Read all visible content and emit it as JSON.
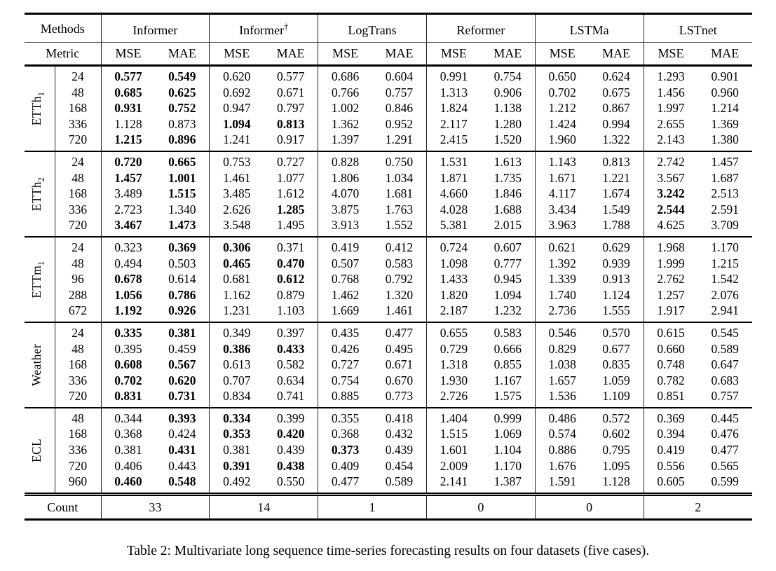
{
  "table": {
    "methods_label": "Methods",
    "metric_label": "Metric",
    "count_label": "Count",
    "mse_label": "MSE",
    "mae_label": "MAE",
    "methods": [
      {
        "name": "Informer",
        "sup": ""
      },
      {
        "name": "Informer",
        "sup": "†"
      },
      {
        "name": "LogTrans",
        "sup": ""
      },
      {
        "name": "Reformer",
        "sup": ""
      },
      {
        "name": "LSTMa",
        "sup": ""
      },
      {
        "name": "LSTnet",
        "sup": ""
      }
    ],
    "counts": [
      "33",
      "14",
      "1",
      "0",
      "0",
      "2"
    ],
    "groups": [
      {
        "dataset": "ETTh",
        "sub": "1",
        "rows": [
          {
            "horizon": "24",
            "values": [
              "0.577",
              "0.549",
              "0.620",
              "0.577",
              "0.686",
              "0.604",
              "0.991",
              "0.754",
              "0.650",
              "0.624",
              "1.293",
              "0.901"
            ],
            "bold": [
              0,
              1
            ]
          },
          {
            "horizon": "48",
            "values": [
              "0.685",
              "0.625",
              "0.692",
              "0.671",
              "0.766",
              "0.757",
              "1.313",
              "0.906",
              "0.702",
              "0.675",
              "1.456",
              "0.960"
            ],
            "bold": [
              0,
              1
            ]
          },
          {
            "horizon": "168",
            "values": [
              "0.931",
              "0.752",
              "0.947",
              "0.797",
              "1.002",
              "0.846",
              "1.824",
              "1.138",
              "1.212",
              "0.867",
              "1.997",
              "1.214"
            ],
            "bold": [
              0,
              1
            ]
          },
          {
            "horizon": "336",
            "values": [
              "1.128",
              "0.873",
              "1.094",
              "0.813",
              "1.362",
              "0.952",
              "2.117",
              "1.280",
              "1.424",
              "0.994",
              "2.655",
              "1.369"
            ],
            "bold": [
              2,
              3
            ]
          },
          {
            "horizon": "720",
            "values": [
              "1.215",
              "0.896",
              "1.241",
              "0.917",
              "1.397",
              "1.291",
              "2.415",
              "1.520",
              "1.960",
              "1.322",
              "2.143",
              "1.380"
            ],
            "bold": [
              0,
              1
            ]
          }
        ]
      },
      {
        "dataset": "ETTh",
        "sub": "2",
        "rows": [
          {
            "horizon": "24",
            "values": [
              "0.720",
              "0.665",
              "0.753",
              "0.727",
              "0.828",
              "0.750",
              "1.531",
              "1.613",
              "1.143",
              "0.813",
              "2.742",
              "1.457"
            ],
            "bold": [
              0,
              1
            ]
          },
          {
            "horizon": "48",
            "values": [
              "1.457",
              "1.001",
              "1.461",
              "1.077",
              "1.806",
              "1.034",
              "1.871",
              "1.735",
              "1.671",
              "1.221",
              "3.567",
              "1.687"
            ],
            "bold": [
              0,
              1
            ]
          },
          {
            "horizon": "168",
            "values": [
              "3.489",
              "1.515",
              "3.485",
              "1.612",
              "4.070",
              "1.681",
              "4.660",
              "1.846",
              "4.117",
              "1.674",
              "3.242",
              "2.513"
            ],
            "bold": [
              1,
              10
            ]
          },
          {
            "horizon": "336",
            "values": [
              "2.723",
              "1.340",
              "2.626",
              "1.285",
              "3.875",
              "1.763",
              "4.028",
              "1.688",
              "3.434",
              "1.549",
              "2.544",
              "2.591"
            ],
            "bold": [
              3,
              10
            ]
          },
          {
            "horizon": "720",
            "values": [
              "3.467",
              "1.473",
              "3.548",
              "1.495",
              "3.913",
              "1.552",
              "5.381",
              "2.015",
              "3.963",
              "1.788",
              "4.625",
              "3.709"
            ],
            "bold": [
              0,
              1
            ]
          }
        ]
      },
      {
        "dataset": "ETTm",
        "sub": "1",
        "rows": [
          {
            "horizon": "24",
            "values": [
              "0.323",
              "0.369",
              "0.306",
              "0.371",
              "0.419",
              "0.412",
              "0.724",
              "0.607",
              "0.621",
              "0.629",
              "1.968",
              "1.170"
            ],
            "bold": [
              1,
              2
            ]
          },
          {
            "horizon": "48",
            "values": [
              "0.494",
              "0.503",
              "0.465",
              "0.470",
              "0.507",
              "0.583",
              "1.098",
              "0.777",
              "1.392",
              "0.939",
              "1.999",
              "1.215"
            ],
            "bold": [
              2,
              3
            ]
          },
          {
            "horizon": "96",
            "values": [
              "0.678",
              "0.614",
              "0.681",
              "0.612",
              "0.768",
              "0.792",
              "1.433",
              "0.945",
              "1.339",
              "0.913",
              "2.762",
              "1.542"
            ],
            "bold": [
              0,
              3
            ]
          },
          {
            "horizon": "288",
            "values": [
              "1.056",
              "0.786",
              "1.162",
              "0.879",
              "1.462",
              "1.320",
              "1.820",
              "1.094",
              "1.740",
              "1.124",
              "1.257",
              "2.076"
            ],
            "bold": [
              0,
              1
            ]
          },
          {
            "horizon": "672",
            "values": [
              "1.192",
              "0.926",
              "1.231",
              "1.103",
              "1.669",
              "1.461",
              "2.187",
              "1.232",
              "2.736",
              "1.555",
              "1.917",
              "2.941"
            ],
            "bold": [
              0,
              1
            ]
          }
        ]
      },
      {
        "dataset": "Weather",
        "sub": "",
        "rows": [
          {
            "horizon": "24",
            "values": [
              "0.335",
              "0.381",
              "0.349",
              "0.397",
              "0.435",
              "0.477",
              "0.655",
              "0.583",
              "0.546",
              "0.570",
              "0.615",
              "0.545"
            ],
            "bold": [
              0,
              1
            ]
          },
          {
            "horizon": "48",
            "values": [
              "0.395",
              "0.459",
              "0.386",
              "0.433",
              "0.426",
              "0.495",
              "0.729",
              "0.666",
              "0.829",
              "0.677",
              "0.660",
              "0.589"
            ],
            "bold": [
              2,
              3
            ]
          },
          {
            "horizon": "168",
            "values": [
              "0.608",
              "0.567",
              "0.613",
              "0.582",
              "0.727",
              "0.671",
              "1.318",
              "0.855",
              "1.038",
              "0.835",
              "0.748",
              "0.647"
            ],
            "bold": [
              0,
              1
            ]
          },
          {
            "horizon": "336",
            "values": [
              "0.702",
              "0.620",
              "0.707",
              "0.634",
              "0.754",
              "0.670",
              "1.930",
              "1.167",
              "1.657",
              "1.059",
              "0.782",
              "0.683"
            ],
            "bold": [
              0,
              1
            ]
          },
          {
            "horizon": "720",
            "values": [
              "0.831",
              "0.731",
              "0.834",
              "0.741",
              "0.885",
              "0.773",
              "2.726",
              "1.575",
              "1.536",
              "1.109",
              "0.851",
              "0.757"
            ],
            "bold": [
              0,
              1
            ]
          }
        ]
      },
      {
        "dataset": "ECL",
        "sub": "",
        "rows": [
          {
            "horizon": "48",
            "values": [
              "0.344",
              "0.393",
              "0.334",
              "0.399",
              "0.355",
              "0.418",
              "1.404",
              "0.999",
              "0.486",
              "0.572",
              "0.369",
              "0.445"
            ],
            "bold": [
              1,
              2
            ]
          },
          {
            "horizon": "168",
            "values": [
              "0.368",
              "0.424",
              "0.353",
              "0.420",
              "0.368",
              "0.432",
              "1.515",
              "1.069",
              "0.574",
              "0.602",
              "0.394",
              "0.476"
            ],
            "bold": [
              2,
              3
            ]
          },
          {
            "horizon": "336",
            "values": [
              "0.381",
              "0.431",
              "0.381",
              "0.439",
              "0.373",
              "0.439",
              "1.601",
              "1.104",
              "0.886",
              "0.795",
              "0.419",
              "0.477"
            ],
            "bold": [
              1,
              4
            ]
          },
          {
            "horizon": "720",
            "values": [
              "0.406",
              "0.443",
              "0.391",
              "0.438",
              "0.409",
              "0.454",
              "2.009",
              "1.170",
              "1.676",
              "1.095",
              "0.556",
              "0.565"
            ],
            "bold": [
              2,
              3
            ]
          },
          {
            "horizon": "960",
            "values": [
              "0.460",
              "0.548",
              "0.492",
              "0.550",
              "0.477",
              "0.589",
              "2.141",
              "1.387",
              "1.591",
              "1.128",
              "0.605",
              "0.599"
            ],
            "bold": [
              0,
              1
            ]
          }
        ]
      }
    ]
  },
  "caption": "Table 2: Multivariate long sequence time-series forecasting results on four datasets (five cases)."
}
